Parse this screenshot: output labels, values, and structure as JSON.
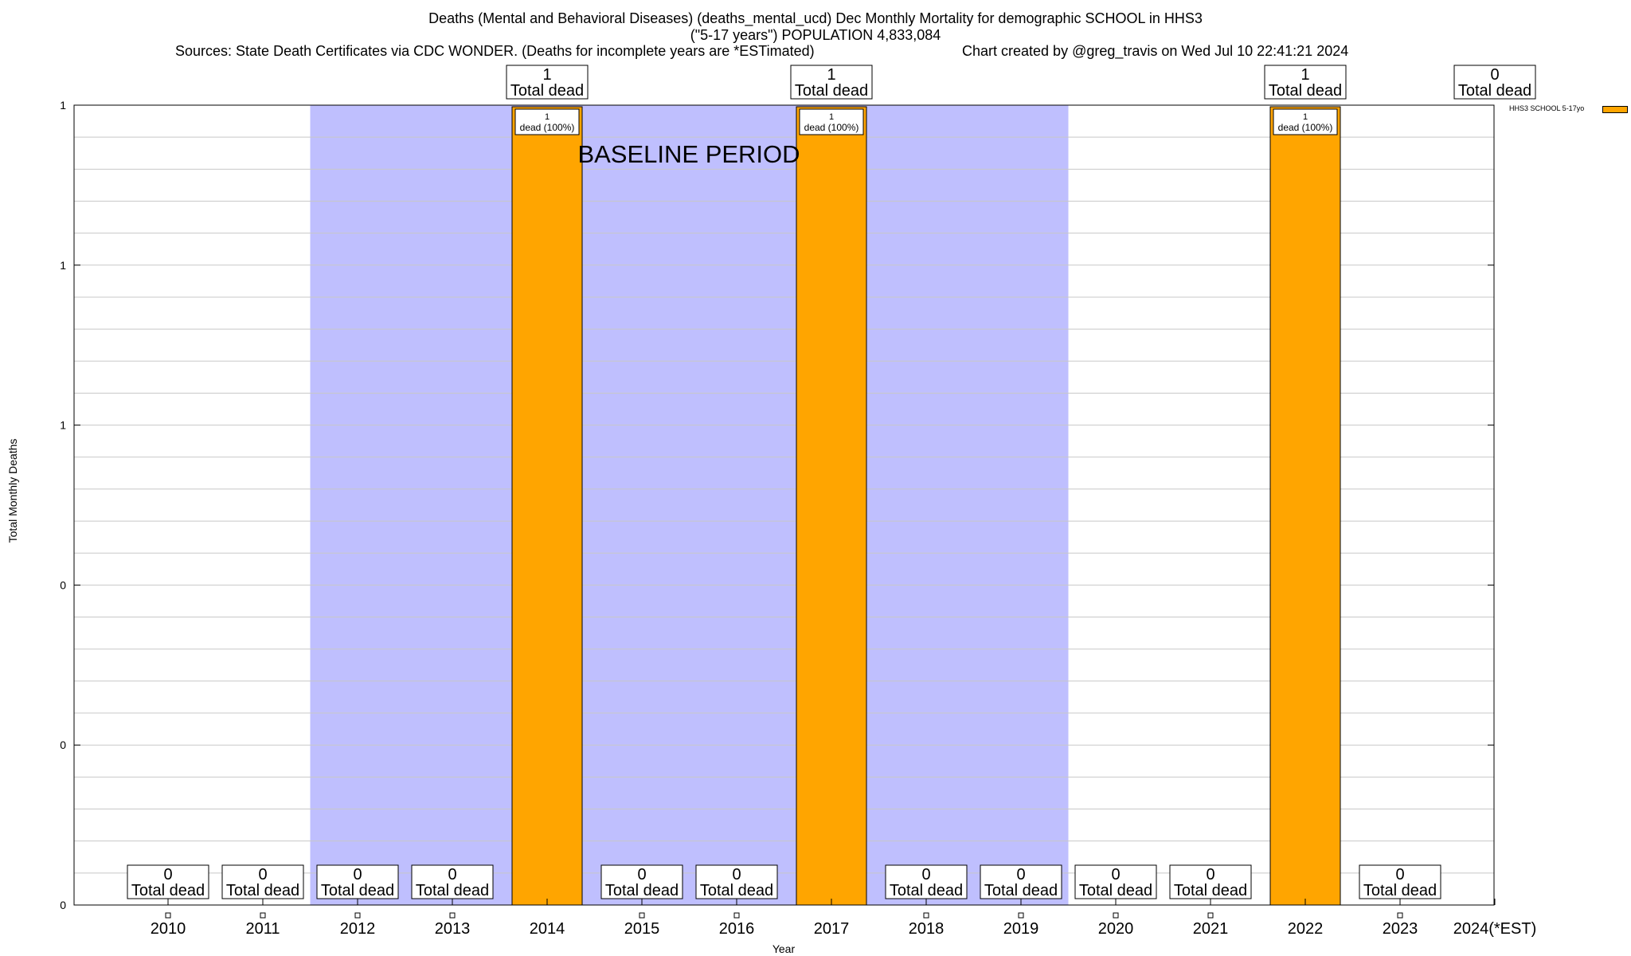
{
  "title": {
    "line1": "Deaths (Mental and Behavioral Diseases) (deaths_mental_ucd) Dec Monthly Mortality for demographic SCHOOL in HHS3",
    "line2": "(\"5-17 years\") POPULATION 4,833,084",
    "line3_left": "Sources: State Death Certificates via CDC WONDER. (Deaths for incomplete years are *ESTimated)",
    "line3_right": "Chart created by @greg_travis on Wed Jul 10 22:41:21 2024"
  },
  "chart_data": {
    "type": "bar",
    "categories": [
      "2010",
      "2011",
      "2012",
      "2013",
      "2014",
      "2015",
      "2016",
      "2017",
      "2018",
      "2019",
      "2020",
      "2021",
      "2022",
      "2023",
      "2024(*EST)"
    ],
    "series": [
      {
        "name": "HHS3 SCHOOL 5-17yo",
        "values": [
          0,
          0,
          0,
          0,
          1,
          0,
          0,
          1,
          0,
          0,
          0,
          0,
          1,
          0,
          0
        ],
        "color": "#ffa500"
      }
    ],
    "top_label_years": [
      "2014",
      "2017",
      "2022",
      "2024(*EST)"
    ],
    "total_label_text": "Total dead",
    "bar_label_text": "dead (100%)",
    "xlabel": "Year",
    "ylabel": "Total Monthly Deaths",
    "ylim": [
      0,
      1
    ],
    "ytick_values": [
      0,
      0.2,
      0.4,
      0.6,
      0.8,
      1
    ],
    "ytick_labels": [
      "0",
      "0",
      "0",
      "1",
      "1",
      "1"
    ],
    "baseline_period": {
      "start": "2012",
      "end": "2019",
      "label": "BASELINE PERIOD",
      "color": "#bfbffe"
    },
    "grid": true,
    "legend_position": "top-right outside"
  }
}
